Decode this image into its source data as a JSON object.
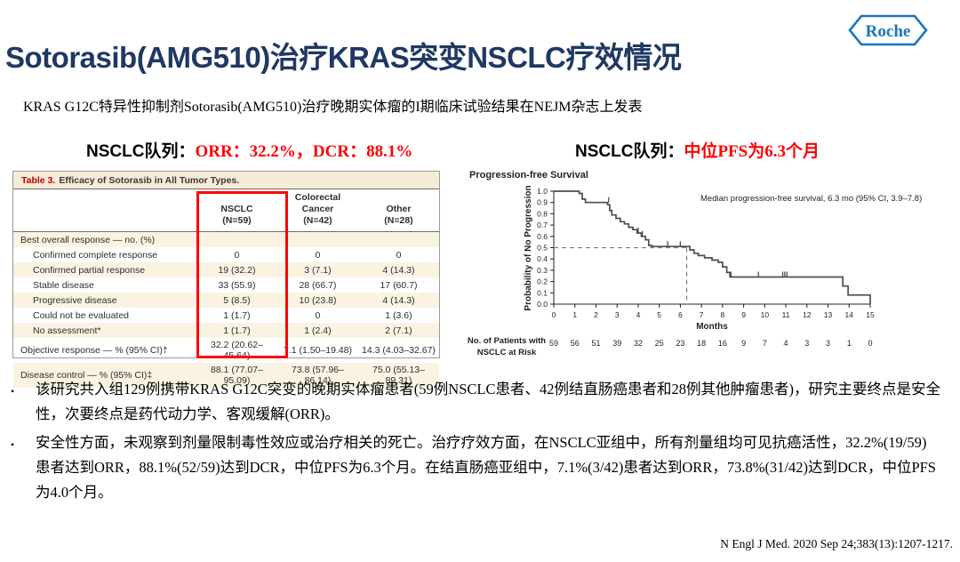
{
  "logo": {
    "text": "Roche",
    "color": "#1B75BC"
  },
  "header": {
    "title": "Sotorasib(AMG510)治疗KRAS突变NSCLC疗效情况",
    "subtitle": "KRAS G12C特异性抑制剂Sotorasib(AMG510)治疗晚期实体瘤的I期临床试验结果在NEJM杂志上发表"
  },
  "sections": {
    "left": {
      "label": "NSCLC队列：",
      "highlight": "ORR：32.2%，DCR：88.1%"
    },
    "right": {
      "label": "NSCLC队列：",
      "highlight": "中位PFS为6.3个月"
    }
  },
  "table": {
    "title_label": "Table 3.",
    "title_text": "Efficacy of Sotorasib in All Tumor Types.",
    "columns": [
      {
        "name": "NSCLC",
        "n": "(N=59)"
      },
      {
        "name": "Colorectal Cancer",
        "n": "(N=42)"
      },
      {
        "name": "Other",
        "n": "(N=28)"
      }
    ],
    "highlighted_column": "NSCLC",
    "rows": [
      {
        "label": "Best overall response — no. (%)",
        "indent": 0,
        "values": [
          "",
          "",
          ""
        ]
      },
      {
        "label": "Confirmed complete response",
        "indent": 1,
        "values": [
          "0",
          "0",
          "0"
        ]
      },
      {
        "label": "Confirmed partial response",
        "indent": 1,
        "values": [
          "19 (32.2)",
          "3 (7.1)",
          "4 (14.3)"
        ]
      },
      {
        "label": "Stable disease",
        "indent": 1,
        "values": [
          "33 (55.9)",
          "28 (66.7)",
          "17 (60.7)"
        ]
      },
      {
        "label": "Progressive disease",
        "indent": 1,
        "values": [
          "5 (8.5)",
          "10 (23.8)",
          "4 (14.3)"
        ]
      },
      {
        "label": "Could not be evaluated",
        "indent": 1,
        "values": [
          "1 (1.7)",
          "0",
          "1 (3.6)"
        ]
      },
      {
        "label": "No assessment*",
        "indent": 1,
        "values": [
          "1 (1.7)",
          "1 (2.4)",
          "2 (7.1)"
        ]
      },
      {
        "label": "Objective response — % (95% CI)†",
        "indent": 0,
        "values": [
          "32.2 (20.62–45.64)",
          "7.1 (1.50–19.48)",
          "14.3 (4.03–32.67)"
        ]
      },
      {
        "label": "Disease control — % (95% CI)‡",
        "indent": 0,
        "values": [
          "88.1 (77.07–95.09)",
          "73.8 (57.96–86.14)",
          "75.0 (55.13–89.31)"
        ]
      }
    ]
  },
  "chart_data": {
    "type": "line",
    "subtype": "kaplan_meier_step",
    "title": "Progression-free Survival",
    "ylabel": "Probability of No Progression",
    "xlabel": "Months",
    "xlim": [
      0,
      15
    ],
    "ylim": [
      0.0,
      1.0
    ],
    "xticks": [
      0,
      1,
      2,
      3,
      4,
      5,
      6,
      7,
      8,
      9,
      10,
      11,
      12,
      13,
      14,
      15
    ],
    "yticks": [
      "0.0",
      "0.1",
      "0.2",
      "0.3",
      "0.4",
      "0.5",
      "0.6",
      "0.7",
      "0.8",
      "0.9",
      "1.0"
    ],
    "grid": false,
    "annotation": "Median progression-free survival, 6.3 mo (95% CI, 3.9–7.8)",
    "median_months": 6.3,
    "median_probability": 0.5,
    "steps": [
      [
        0,
        1.0
      ],
      [
        1.2,
        0.98
      ],
      [
        1.35,
        0.93
      ],
      [
        1.5,
        0.9
      ],
      [
        2.55,
        0.88
      ],
      [
        2.65,
        0.83
      ],
      [
        2.75,
        0.79
      ],
      [
        2.95,
        0.76
      ],
      [
        3.15,
        0.73
      ],
      [
        3.35,
        0.71
      ],
      [
        3.55,
        0.68
      ],
      [
        3.75,
        0.66
      ],
      [
        3.95,
        0.63
      ],
      [
        4.15,
        0.6
      ],
      [
        4.35,
        0.57
      ],
      [
        4.5,
        0.52
      ],
      [
        4.65,
        0.51
      ],
      [
        6.45,
        0.48
      ],
      [
        6.65,
        0.45
      ],
      [
        6.85,
        0.43
      ],
      [
        7.15,
        0.41
      ],
      [
        7.5,
        0.39
      ],
      [
        7.8,
        0.37
      ],
      [
        8.0,
        0.33
      ],
      [
        8.2,
        0.28
      ],
      [
        8.35,
        0.24
      ],
      [
        13.7,
        0.16
      ],
      [
        13.95,
        0.08
      ],
      [
        15,
        0.0
      ]
    ],
    "censor_marks": [
      [
        2.6,
        0.9
      ],
      [
        4.0,
        0.63
      ],
      [
        4.2,
        0.6
      ],
      [
        5.4,
        0.51
      ],
      [
        6.0,
        0.51
      ],
      [
        8.4,
        0.24
      ],
      [
        9.7,
        0.24
      ],
      [
        10.85,
        0.24
      ],
      [
        10.95,
        0.24
      ],
      [
        11.05,
        0.24
      ]
    ],
    "at_risk": {
      "label": [
        "No. of Patients with",
        "NSCLC at Risk"
      ],
      "values": [
        59,
        56,
        51,
        39,
        32,
        25,
        23,
        18,
        16,
        9,
        7,
        4,
        3,
        3,
        1,
        0
      ]
    }
  },
  "bullets": [
    "该研究共入组129例携带KRAS G12C突变的晚期实体瘤患者(59例NSCLC患者、42例结直肠癌患者和28例其他肿瘤患者)，研究主要终点是安全性，次要终点是药代动力学、客观缓解(ORR)。",
    "安全性方面，未观察到剂量限制毒性效应或治疗相关的死亡。治疗疗效方面，在NSCLC亚组中，所有剂量组均可见抗癌活性，32.2%(19/59)患者达到ORR，88.1%(52/59)达到DCR，中位PFS为6.3个月。在结直肠癌亚组中，7.1%(3/42)患者达到ORR，73.8%(31/42)达到DCR，中位PFS为4.0个月。"
  ],
  "citation": "N Engl J Med. 2020 Sep 24;383(13):1207-1217.",
  "colors": {
    "title": "#1F3864",
    "highlight": "#FF0000",
    "table_title_label": "#C00000",
    "table_stripe": "#FBF3E2",
    "roche_blue": "#1B75BC",
    "curve": "#4D4D4F"
  }
}
